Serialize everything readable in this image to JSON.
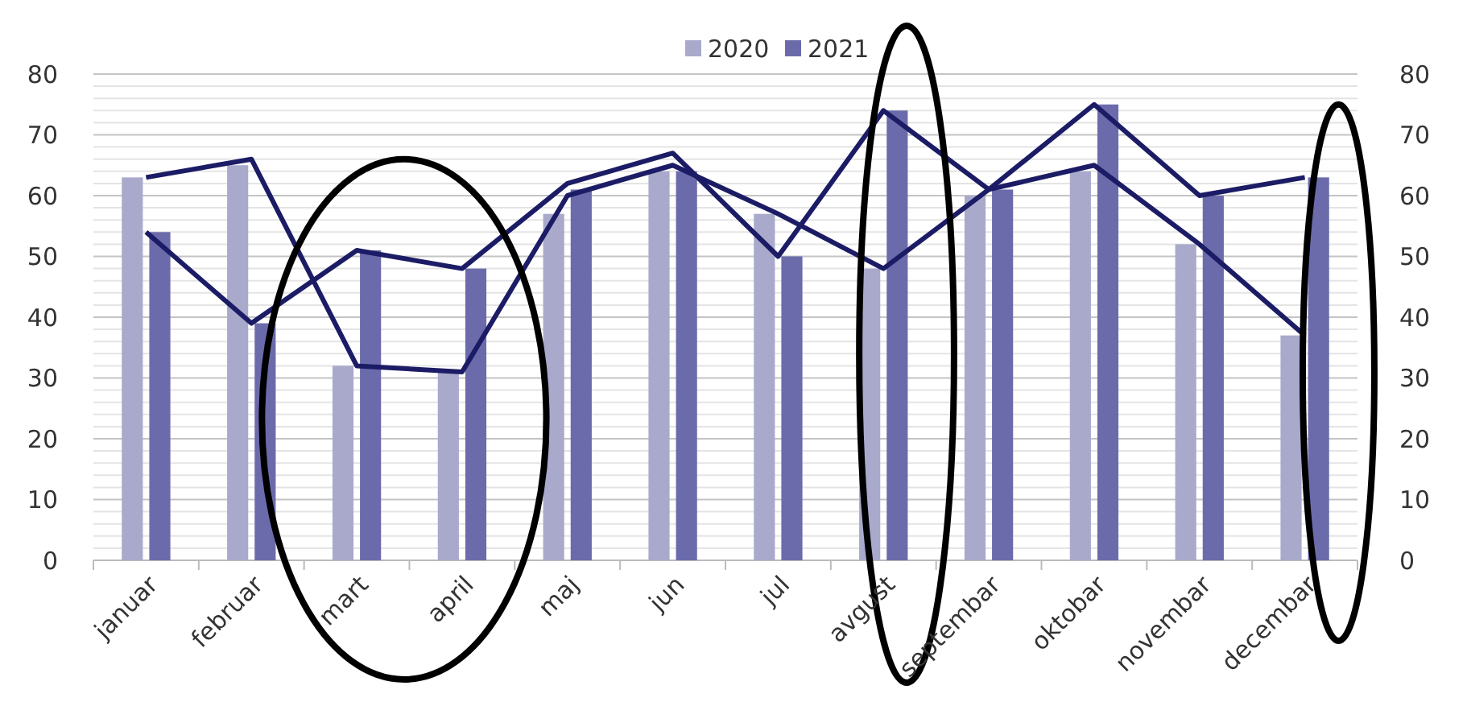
{
  "chart_data": {
    "type": "bar",
    "categories": [
      "januar",
      "februar",
      "mart",
      "april",
      "maj",
      "jun",
      "jul",
      "avgust",
      "septembar",
      "oktobar",
      "novembar",
      "decembar"
    ],
    "series": [
      {
        "name": "2020",
        "color": "#a9a9cc",
        "values": [
          63,
          65,
          32,
          31,
          57,
          64,
          57,
          48,
          60,
          64,
          52,
          37
        ]
      },
      {
        "name": "2021",
        "color": "#6b6bab",
        "values": [
          54,
          39,
          51,
          48,
          61,
          64,
          50,
          74,
          61,
          75,
          60,
          63
        ]
      },
      {
        "type": "line",
        "color": "#1c1c66",
        "values": [
          63,
          66,
          32,
          31,
          60,
          65,
          57,
          48,
          61,
          65,
          52,
          37
        ]
      },
      {
        "type": "line",
        "color": "#1c1c66",
        "values": [
          54,
          39,
          51,
          48,
          62,
          67,
          50,
          74,
          61,
          75,
          60,
          63
        ]
      }
    ],
    "ylim": [
      0,
      80
    ],
    "yticks": [
      0,
      {
        "value": 2,
        "label": null
      },
      {
        "value": 4,
        "label": null
      },
      {
        "value": 6,
        "label": null
      },
      {
        "value": 8,
        "label": null
      },
      10,
      {
        "value": 12,
        "label": null
      },
      {
        "value": 14,
        "label": null
      },
      {
        "value": 16,
        "label": null
      },
      {
        "value": 18,
        "label": null
      },
      20,
      {
        "value": 22,
        "label": null
      },
      {
        "value": 24,
        "label": null
      },
      {
        "value": 26,
        "label": null
      },
      {
        "value": 28,
        "label": null
      },
      30,
      {
        "value": 32,
        "label": null
      },
      {
        "value": 34,
        "label": null
      },
      {
        "value": 36,
        "label": null
      },
      {
        "value": 38,
        "label": null
      },
      40,
      {
        "value": 42,
        "label": null
      },
      {
        "value": 44,
        "label": null
      },
      {
        "value": 46,
        "label": null
      },
      {
        "value": 48,
        "label": null
      },
      50,
      {
        "value": 52,
        "label": null
      },
      {
        "value": 54,
        "label": null
      },
      {
        "value": 56,
        "label": null
      },
      {
        "value": 58,
        "label": null
      },
      60,
      {
        "value": 62,
        "label": null
      },
      {
        "value": 64,
        "label": null
      },
      {
        "value": 66,
        "label": null
      },
      {
        "value": 68,
        "label": null
      },
      70,
      {
        "value": 72,
        "label": null
      },
      {
        "value": 74,
        "label": null
      },
      {
        "value": 76,
        "label": null
      },
      {
        "value": 78,
        "label": null
      },
      80
    ],
    "y2lim": [
      0,
      80
    ],
    "y2ticks": [
      0,
      10,
      20,
      30,
      40,
      50,
      60,
      70,
      80
    ],
    "grid": "y",
    "legend": "top",
    "marker": "none",
    "line_style": "solid"
  }
}
